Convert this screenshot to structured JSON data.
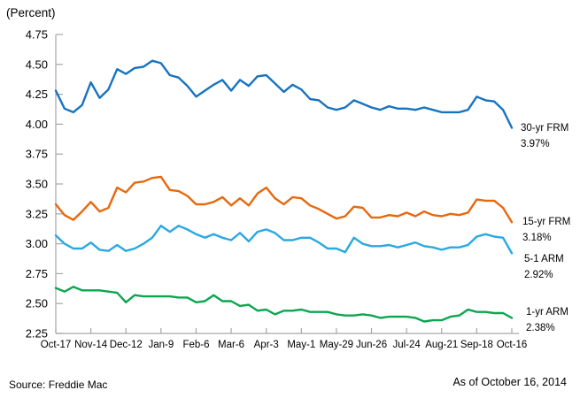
{
  "header": {
    "unit_label": "(Percent)"
  },
  "footer": {
    "source": "Source: Freddie Mac",
    "as_of": "As of October 16, 2014"
  },
  "chart_data": {
    "type": "line",
    "title": "",
    "unit_label": "(Percent)",
    "xlabel": "",
    "ylabel": "Percent",
    "ylim": [
      2.25,
      4.75
    ],
    "grid": false,
    "legend_position": "right-end-annotations",
    "axis_color": "#A6A6A6",
    "text_color": "#000000",
    "n_points": 53,
    "x_tick_labels": [
      "Oct-17",
      "Nov-14",
      "Dec-12",
      "Jan-9",
      "Feb-6",
      "Mar-6",
      "Apr-3",
      "May-1",
      "May-29",
      "Jun-26",
      "Jul-24",
      "Aug-21",
      "Sep-18",
      "Oct-16"
    ],
    "x_tick_positions": [
      0,
      4,
      8,
      12,
      16,
      20,
      24,
      28,
      32,
      36,
      40,
      44,
      48,
      52
    ],
    "y_tick_labels": [
      "2.25",
      "2.50",
      "2.75",
      "3.00",
      "3.25",
      "3.50",
      "3.75",
      "4.00",
      "4.25",
      "4.50",
      "4.75"
    ],
    "series": [
      {
        "name": "30-yr FRM",
        "end_label": "3.97%",
        "color": "#1773C1",
        "values": [
          4.28,
          4.13,
          4.1,
          4.16,
          4.35,
          4.22,
          4.29,
          4.46,
          4.42,
          4.47,
          4.48,
          4.53,
          4.51,
          4.41,
          4.39,
          4.32,
          4.23,
          4.28,
          4.33,
          4.37,
          4.28,
          4.37,
          4.32,
          4.4,
          4.41,
          4.34,
          4.27,
          4.33,
          4.29,
          4.21,
          4.2,
          4.14,
          4.12,
          4.14,
          4.2,
          4.17,
          4.14,
          4.12,
          4.15,
          4.13,
          4.13,
          4.12,
          4.14,
          4.12,
          4.1,
          4.1,
          4.1,
          4.12,
          4.23,
          4.2,
          4.19,
          4.12,
          3.97
        ]
      },
      {
        "name": "15-yr FRM",
        "end_label": "3.18%",
        "color": "#E8680D",
        "values": [
          3.33,
          3.24,
          3.2,
          3.27,
          3.35,
          3.27,
          3.3,
          3.47,
          3.43,
          3.51,
          3.52,
          3.55,
          3.56,
          3.45,
          3.44,
          3.4,
          3.33,
          3.33,
          3.35,
          3.39,
          3.32,
          3.38,
          3.32,
          3.42,
          3.47,
          3.38,
          3.33,
          3.39,
          3.38,
          3.32,
          3.29,
          3.25,
          3.21,
          3.23,
          3.31,
          3.3,
          3.22,
          3.22,
          3.24,
          3.23,
          3.26,
          3.23,
          3.27,
          3.24,
          3.23,
          3.25,
          3.24,
          3.26,
          3.37,
          3.36,
          3.36,
          3.3,
          3.18
        ]
      },
      {
        "name": "5-1 ARM",
        "end_label": "2.92%",
        "color": "#29A8E2",
        "values": [
          3.07,
          3.0,
          2.96,
          2.96,
          3.01,
          2.95,
          2.94,
          2.99,
          2.94,
          2.96,
          3.0,
          3.05,
          3.15,
          3.1,
          3.15,
          3.12,
          3.08,
          3.05,
          3.08,
          3.05,
          3.03,
          3.09,
          3.02,
          3.1,
          3.12,
          3.09,
          3.03,
          3.03,
          3.05,
          3.05,
          3.01,
          2.96,
          2.96,
          2.93,
          3.05,
          3.0,
          2.98,
          2.98,
          2.99,
          2.97,
          2.99,
          3.01,
          2.98,
          2.97,
          2.95,
          2.97,
          2.97,
          2.99,
          3.06,
          3.08,
          3.06,
          3.05,
          2.92
        ]
      },
      {
        "name": "1-yr ARM",
        "end_label": "2.38%",
        "color": "#0CA64F",
        "values": [
          2.63,
          2.6,
          2.64,
          2.61,
          2.61,
          2.61,
          2.6,
          2.59,
          2.51,
          2.57,
          2.56,
          2.56,
          2.56,
          2.56,
          2.55,
          2.55,
          2.51,
          2.52,
          2.57,
          2.52,
          2.52,
          2.48,
          2.49,
          2.44,
          2.45,
          2.41,
          2.44,
          2.44,
          2.45,
          2.43,
          2.43,
          2.43,
          2.41,
          2.4,
          2.4,
          2.41,
          2.4,
          2.38,
          2.39,
          2.39,
          2.39,
          2.38,
          2.35,
          2.36,
          2.36,
          2.39,
          2.4,
          2.45,
          2.43,
          2.43,
          2.42,
          2.42,
          2.38
        ]
      }
    ]
  }
}
